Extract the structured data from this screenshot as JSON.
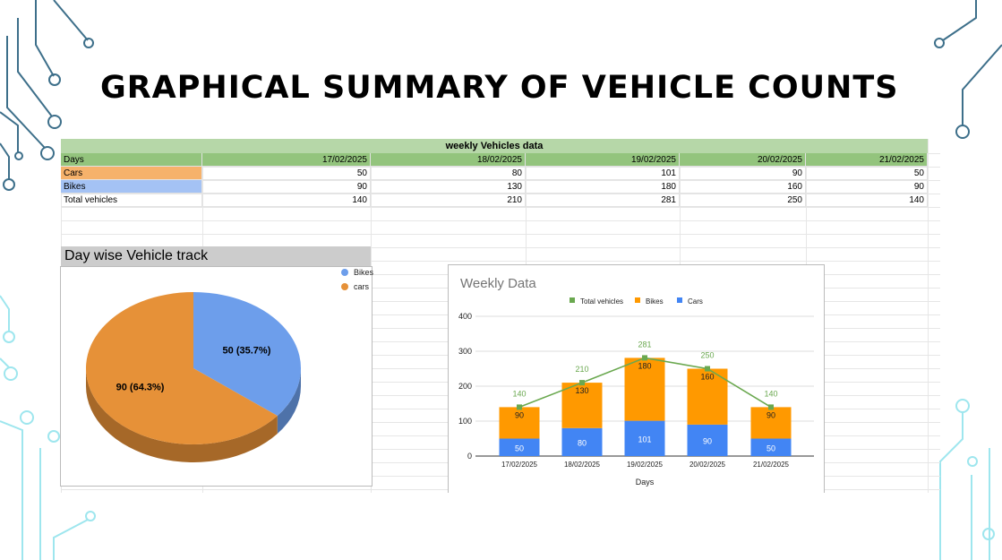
{
  "slide": {
    "title": "GRAPHICAL SUMMARY OF VEHICLE COUNTS"
  },
  "table": {
    "title": "weekly Vehicles data",
    "header": [
      "Days",
      "17/02/2025",
      "18/02/2025",
      "19/02/2025",
      "20/02/2025",
      "21/02/2025"
    ],
    "rows": [
      {
        "label": "Cars",
        "values": [
          "50",
          "80",
          "101",
          "90",
          "50"
        ],
        "color": "#f6b26b"
      },
      {
        "label": "Bikes",
        "values": [
          "90",
          "130",
          "180",
          "160",
          "90"
        ],
        "color": "#a4c2f4"
      },
      {
        "label": "Total vehicles",
        "values": [
          "140",
          "210",
          "281",
          "250",
          "140"
        ]
      }
    ],
    "header_color": "#93c47d",
    "title_color": "#b6d7a8"
  },
  "chart_data": [
    {
      "type": "pie",
      "title": "Day wise Vehicle track",
      "legend_position": "top-right",
      "three_d": true,
      "slices": [
        {
          "name": "Bikes",
          "value": 50,
          "label": "50 (35.7%)",
          "color": "#6d9eeb"
        },
        {
          "name": "cars",
          "value": 90,
          "label": "90 (64.3%)",
          "color": "#e69138"
        }
      ]
    },
    {
      "type": "bar",
      "stacked": true,
      "title": "Weekly Data",
      "xlabel": "Days",
      "ylabel": "",
      "ylim": [
        0,
        400
      ],
      "yticks": [
        "0",
        "100",
        "200",
        "300",
        "400"
      ],
      "grid": true,
      "legend_position": "top",
      "categories": [
        "17/02/2025",
        "18/02/2025",
        "19/02/2025",
        "20/02/2025",
        "21/02/2025"
      ],
      "series": [
        {
          "name": "Cars",
          "type": "bar",
          "color": "#4285f4",
          "values": [
            50,
            80,
            101,
            90,
            50
          ]
        },
        {
          "name": "Bikes",
          "type": "bar",
          "color": "#ff9900",
          "values": [
            90,
            130,
            180,
            160,
            90
          ]
        },
        {
          "name": "Total vehicles",
          "type": "line",
          "color": "#6aa84f",
          "values": [
            140,
            210,
            281,
            250,
            140
          ]
        }
      ],
      "legend_order": [
        "Total vehicles",
        "Bikes",
        "Cars"
      ]
    }
  ]
}
